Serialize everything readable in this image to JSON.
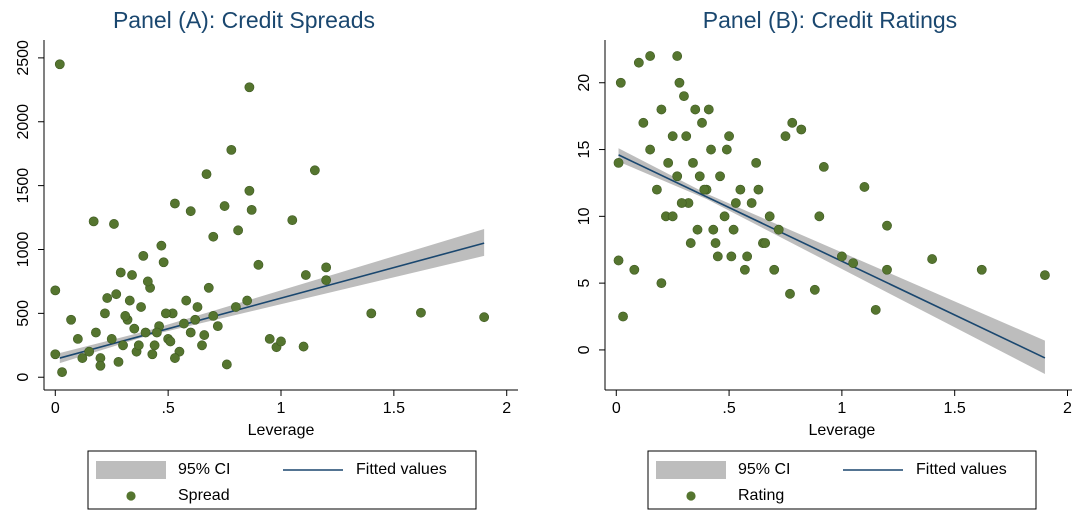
{
  "chart_data": [
    {
      "type": "scatter",
      "title": "Panel (A): Credit Spreads",
      "xlabel": "Leverage",
      "xlim": [
        -0.05,
        2.05
      ],
      "xticks": [
        0,
        {
          "value": 0.5,
          "label": ".5"
        },
        1,
        1.5,
        2
      ],
      "ylim": [
        -100,
        2640
      ],
      "yticks": [
        0,
        500,
        1000,
        1500,
        2000,
        2500
      ],
      "series": [
        {
          "name": "95% CI",
          "type": "band",
          "color": "#bdbdbd",
          "x": [
            0.02,
            0.4,
            1.9
          ],
          "values": [
            190,
            360,
            1160
          ],
          "lower": [
            110,
            320,
            950
          ]
        },
        {
          "name": "Fitted values",
          "type": "line",
          "color": "#1a476f",
          "x": [
            0.02,
            1.9
          ],
          "values": [
            150,
            1050
          ]
        },
        {
          "name": "Spread",
          "type": "points",
          "color": "#55752f",
          "x": [
            0.02,
            0.86,
            0.78,
            1.15,
            0.67,
            0.86,
            0.53,
            0.75,
            0.87,
            0.6,
            1.05,
            0.17,
            0.26,
            0.81,
            0.7,
            0.47,
            0.9,
            1.11,
            1.2,
            1.2,
            1.4,
            1.62,
            1.9,
            1.1,
            0.98,
            0.0,
            0.0,
            0.03,
            0.07,
            0.76,
            0.95,
            1.0,
            0.85,
            0.8,
            0.15,
            0.18,
            0.2,
            0.22,
            0.25,
            0.27,
            0.3,
            0.32,
            0.34,
            0.36,
            0.38,
            0.4,
            0.42,
            0.44,
            0.46,
            0.48,
            0.5,
            0.52,
            0.55,
            0.58,
            0.6,
            0.62,
            0.65,
            0.68,
            0.72,
            0.12,
            0.1,
            0.28,
            0.33,
            0.37,
            0.41,
            0.45,
            0.49,
            0.53,
            0.57,
            0.23,
            0.31,
            0.39,
            0.43,
            0.35,
            0.29,
            0.51,
            0.63,
            0.66,
            0.7,
            0.2
          ],
          "values": [
            2450,
            2270,
            1780,
            1620,
            1590,
            1460,
            1360,
            1340,
            1310,
            1300,
            1230,
            1220,
            1200,
            1150,
            1100,
            1030,
            880,
            800,
            860,
            760,
            500,
            505,
            470,
            240,
            235,
            680,
            180,
            40,
            450,
            100,
            300,
            280,
            600,
            550,
            200,
            350,
            150,
            500,
            300,
            650,
            250,
            450,
            800,
            200,
            550,
            350,
            700,
            250,
            400,
            900,
            300,
            500,
            200,
            600,
            350,
            450,
            250,
            700,
            400,
            150,
            300,
            120,
            600,
            250,
            750,
            350,
            500,
            150,
            420,
            620,
            480,
            950,
            180,
            380,
            820,
            280,
            550,
            330,
            480,
            90
          ]
        }
      ]
    },
    {
      "type": "scatter",
      "title": "Panel (B): Credit Ratings",
      "xlabel": "Leverage",
      "xlim": [
        -0.05,
        2.02
      ],
      "xticks": [
        0,
        {
          "value": 0.5,
          "label": ".5"
        },
        1,
        1.5,
        2
      ],
      "ylim": [
        -3,
        23.2
      ],
      "yticks": [
        0,
        5,
        10,
        15,
        20
      ],
      "series": [
        {
          "name": "95% CI",
          "type": "band",
          "color": "#bdbdbd",
          "x": [
            0.01,
            0.4,
            1.9
          ],
          "values": [
            15.1,
            11.7,
            0.7
          ],
          "lower": [
            14.1,
            11.3,
            -1.8
          ]
        },
        {
          "name": "Fitted values",
          "type": "line",
          "color": "#1a476f",
          "x": [
            0.01,
            1.9
          ],
          "values": [
            14.6,
            -0.6
          ]
        },
        {
          "name": "Rating",
          "type": "points",
          "color": "#55752f",
          "x": [
            0.02,
            0.01,
            0.01,
            0.03,
            0.08,
            0.15,
            0.27,
            0.1,
            0.2,
            1.4,
            1.62,
            1.9,
            1.15,
            1.2,
            1.2,
            1.1,
            0.92,
            0.78,
            0.82,
            0.75,
            0.9,
            0.88,
            0.77,
            1.05,
            1.0,
            0.15,
            0.18,
            0.2,
            0.22,
            0.25,
            0.27,
            0.3,
            0.32,
            0.34,
            0.36,
            0.38,
            0.4,
            0.42,
            0.44,
            0.46,
            0.48,
            0.5,
            0.52,
            0.55,
            0.58,
            0.6,
            0.62,
            0.65,
            0.68,
            0.72,
            0.12,
            0.28,
            0.33,
            0.37,
            0.41,
            0.45,
            0.49,
            0.53,
            0.57,
            0.23,
            0.31,
            0.39,
            0.43,
            0.35,
            0.29,
            0.51,
            0.63,
            0.66,
            0.7,
            0.25
          ],
          "values": [
            20,
            14,
            6.7,
            2.5,
            6,
            22,
            22,
            21.5,
            5,
            6.8,
            6,
            5.6,
            3,
            9.3,
            6,
            12.2,
            13.7,
            17,
            16.5,
            16,
            10,
            4.5,
            4.2,
            6.5,
            7,
            15,
            12,
            18,
            10,
            16,
            13,
            19,
            11,
            14,
            9,
            17,
            12,
            15,
            8,
            13,
            10,
            16,
            9,
            12,
            7,
            11,
            14,
            8,
            10,
            9,
            17,
            20,
            8,
            13,
            18,
            7,
            15,
            11,
            6,
            14,
            16,
            12,
            9,
            18,
            11,
            7,
            12,
            8,
            6,
            10
          ]
        }
      ]
    }
  ]
}
